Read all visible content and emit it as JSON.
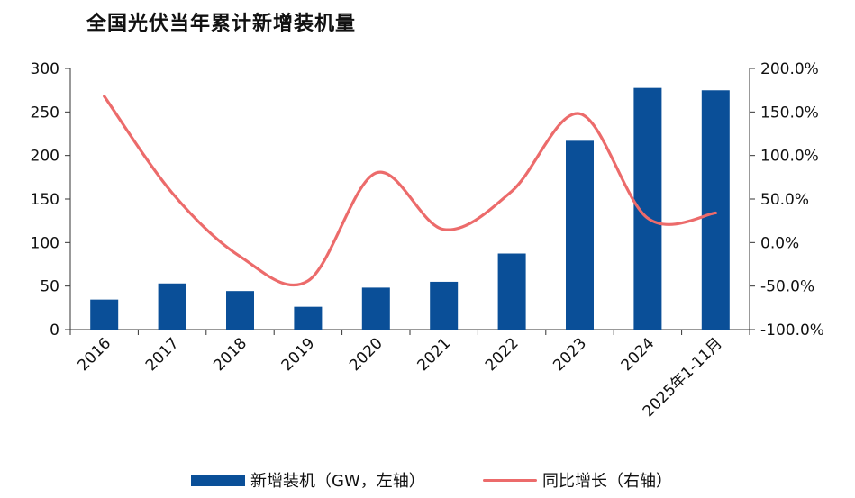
{
  "chart_data": {
    "type": "bar",
    "title": "全国光伏当年累计新增装机量",
    "categories": [
      "2016",
      "2017",
      "2018",
      "2019",
      "2020",
      "2021",
      "2022",
      "2023",
      "2024",
      "2025年1-11月"
    ],
    "series": [
      {
        "name": "新增装机（GW，左轴）",
        "kind": "bar",
        "axis": "left",
        "color": "#0a4f98",
        "values": [
          34.5,
          53,
          44.3,
          26.2,
          48.2,
          54.9,
          87.4,
          216.9,
          277.6,
          274.9
        ]
      },
      {
        "name": "同比增长（右轴）",
        "kind": "line",
        "axis": "right",
        "color": "#ec6b6b",
        "values": [
          168,
          57,
          -16,
          -44,
          80,
          15,
          59,
          148,
          28,
          34
        ]
      }
    ],
    "y_left": {
      "min": 0,
      "max": 300,
      "ticks": [
        "0",
        "50",
        "100",
        "150",
        "200",
        "250",
        "300"
      ],
      "tick_values": [
        0,
        50,
        100,
        150,
        200,
        250,
        300
      ]
    },
    "y_right": {
      "min": -100,
      "max": 200,
      "ticks": [
        "-100.0%",
        "-50.0%",
        "0.0%",
        "50.0%",
        "100.0%",
        "150.0%",
        "200.0%"
      ],
      "tick_values": [
        -100,
        -50,
        0,
        50,
        100,
        150,
        200
      ]
    },
    "legend": [
      "新增装机（GW，左轴）",
      "同比增长（右轴）"
    ],
    "legend_position": "bottom",
    "grid": false
  }
}
